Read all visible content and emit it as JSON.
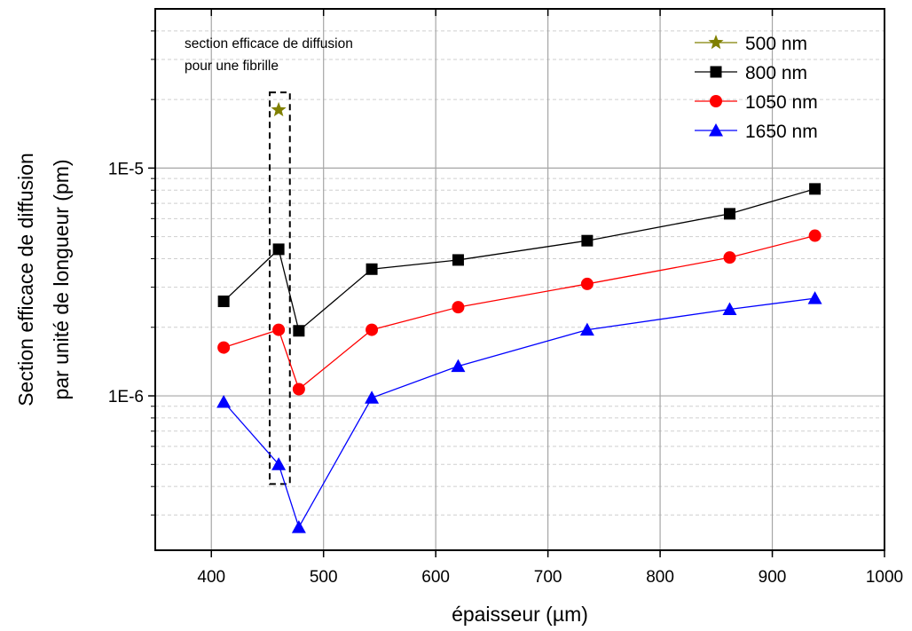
{
  "chart_data": {
    "type": "scatter",
    "title": "",
    "xlabel": "épaisseur (µm)",
    "ylabel_lines": [
      "Section efficace de diffusion",
      "par unité de longueur (pm)"
    ],
    "xlim": [
      350,
      1000
    ],
    "ylim": [
      2.1e-07,
      5e-05
    ],
    "y_scale": "log",
    "x_ticks": [
      400,
      500,
      600,
      700,
      800,
      900,
      1000
    ],
    "x_tick_labels": [
      "400",
      "500",
      "600",
      "700",
      "800",
      "900",
      "1000"
    ],
    "y_ticks": [
      1e-06,
      1e-05
    ],
    "y_tick_labels": [
      "1E-6",
      "1E-5"
    ],
    "grid": true,
    "legend_position": "top-right",
    "annotation": {
      "lines": [
        "section efficace de diffusion",
        "pour une fibrille"
      ],
      "box_x": [
        452,
        470
      ],
      "box_y": [
        4.1e-07,
        2.15e-05
      ]
    },
    "series": [
      {
        "name": "500 nm",
        "color": "#808000",
        "marker": "star",
        "x": [
          460
        ],
        "y": [
          1.8e-05
        ]
      },
      {
        "name": "800 nm",
        "color": "#000000",
        "marker": "square",
        "x": [
          411,
          460,
          478,
          543,
          620,
          735,
          862,
          938
        ],
        "y": [
          2.6e-06,
          4.4e-06,
          1.93e-06,
          3.6e-06,
          3.95e-06,
          4.8e-06,
          6.3e-06,
          8.1e-06
        ]
      },
      {
        "name": "1050 nm",
        "color": "#ff0000",
        "marker": "circle",
        "x": [
          411,
          460,
          478,
          543,
          620,
          735,
          862,
          938
        ],
        "y": [
          1.63e-06,
          1.95e-06,
          1.07e-06,
          1.95e-06,
          2.45e-06,
          3.1e-06,
          4.05e-06,
          5.05e-06
        ]
      },
      {
        "name": "1650 nm",
        "color": "#0000ff",
        "marker": "triangle",
        "x": [
          411,
          460,
          478,
          543,
          620,
          735,
          862,
          938
        ],
        "y": [
          9.4e-07,
          5e-07,
          2.65e-07,
          9.8e-07,
          1.35e-06,
          1.95e-06,
          2.4e-06,
          2.68e-06
        ]
      }
    ]
  }
}
